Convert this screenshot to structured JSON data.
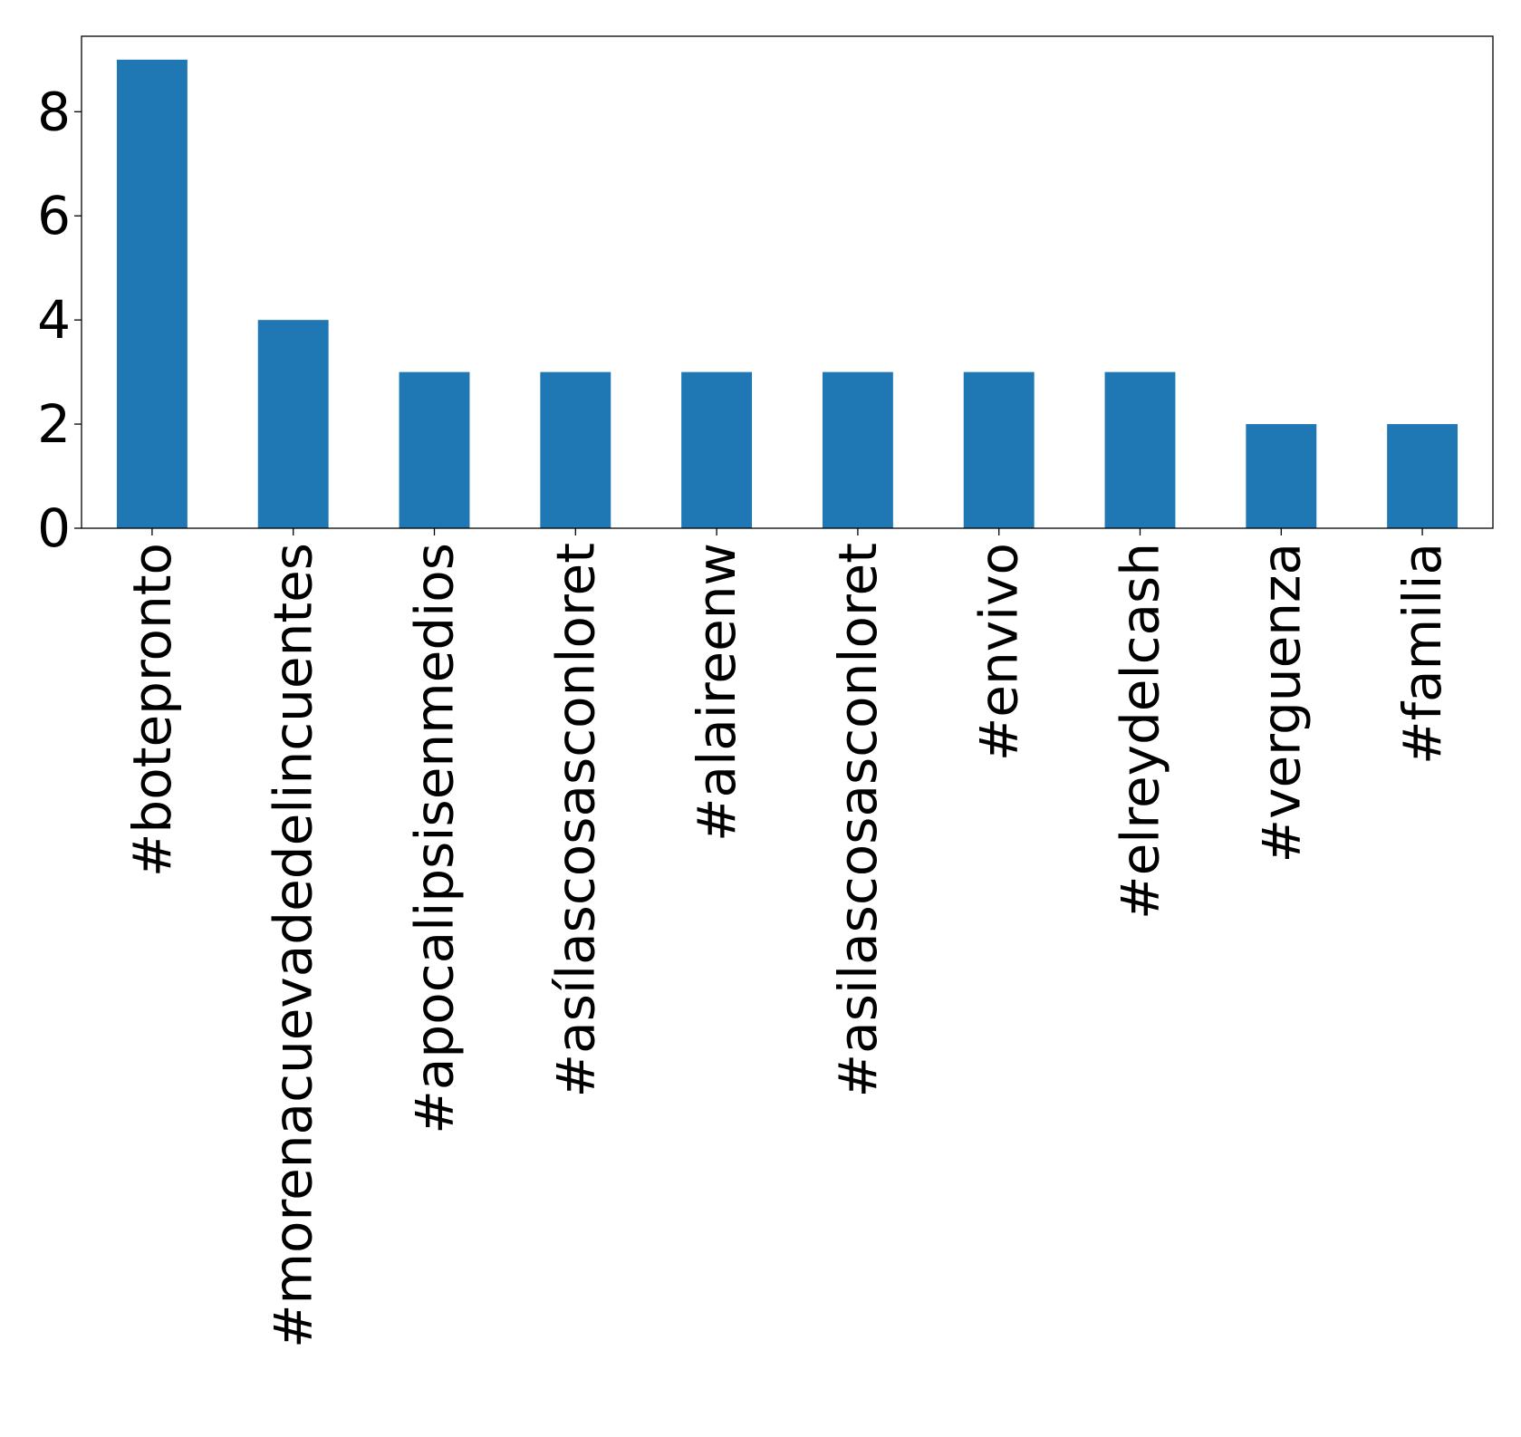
{
  "chart_data": {
    "type": "bar",
    "categories": [
      "#botepronto",
      "#morenacuevadedelincuentes",
      "#apocalipsisenmedios",
      "#asílascosasconloret",
      "#alaireenw",
      "#asilascosasconloret",
      "#envivo",
      "#elreydelcash",
      "#verguenza",
      "#familia"
    ],
    "values": [
      9,
      4,
      3,
      3,
      3,
      3,
      3,
      3,
      2,
      2
    ],
    "ylim": [
      0,
      9.45
    ],
    "yticks": [
      0,
      2,
      4,
      6,
      8
    ],
    "title": "",
    "xlabel": "",
    "ylabel": "",
    "grid": false,
    "bar_color": "#1f77b4"
  }
}
